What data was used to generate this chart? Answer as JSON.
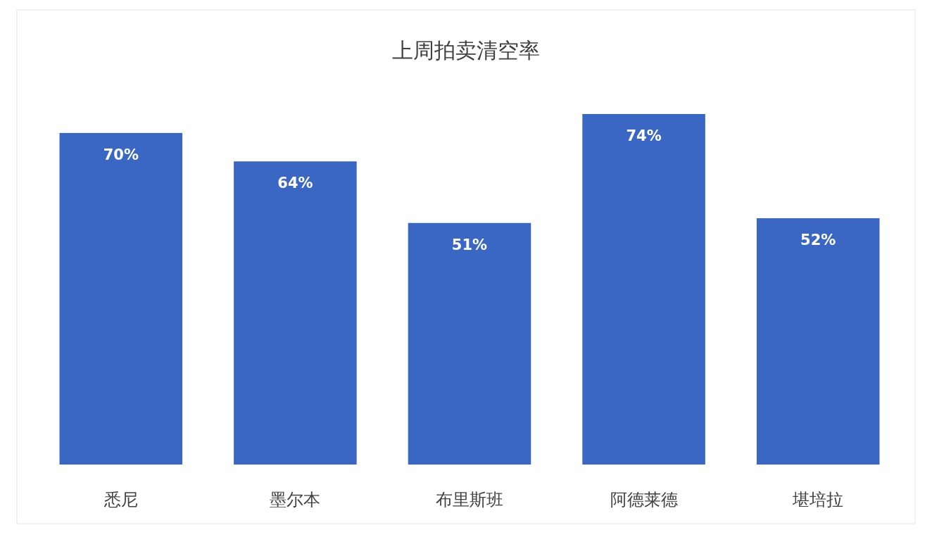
{
  "chart_data": {
    "type": "bar",
    "title": "上周拍卖清空率",
    "categories": [
      "悉尼",
      "墨尔本",
      "布里斯班",
      "阿德莱德",
      "堪培拉"
    ],
    "values": [
      70,
      64,
      51,
      74,
      52
    ],
    "value_labels": [
      "70%",
      "64%",
      "51%",
      "74%",
      "52%"
    ],
    "color": "#3a67c4"
  }
}
